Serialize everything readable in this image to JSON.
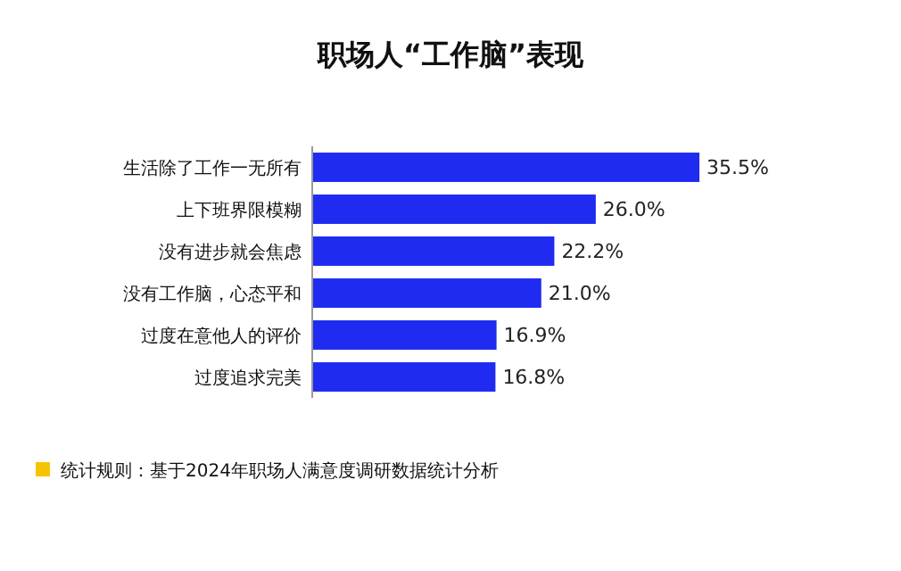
{
  "chart_data": {
    "type": "bar",
    "orientation": "horizontal",
    "title": "职场人“工作脑”表现",
    "categories": [
      "生活除了工作一无所有",
      "上下班界限模糊",
      "没有进步就会焦虑",
      "没有工作脑，心态平和",
      "过度在意他人的评价",
      "过度追求完美"
    ],
    "values": [
      35.5,
      26.0,
      22.2,
      21.0,
      16.9,
      16.8
    ],
    "value_labels": [
      "35.5%",
      "26.0%",
      "22.2%",
      "21.0%",
      "16.9%",
      "16.8%"
    ],
    "color": "#1f2bf0",
    "annotations": [
      "统计规则：基于2024年职场人满意度调研数据统计分析"
    ]
  }
}
